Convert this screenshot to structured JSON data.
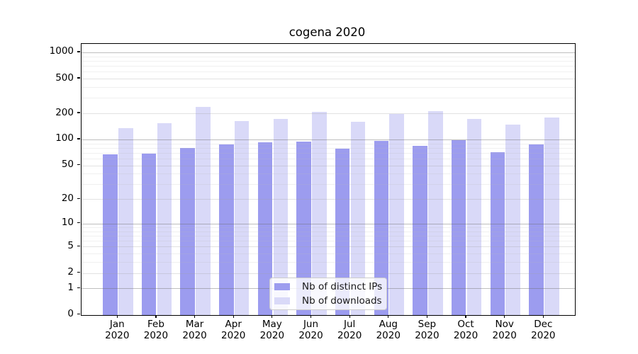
{
  "title": "cogena 2020",
  "chart_data": {
    "type": "bar",
    "categories": [
      "Jan",
      "Feb",
      "Mar",
      "Apr",
      "May",
      "Jun",
      "Jul",
      "Aug",
      "Sep",
      "Oct",
      "Nov",
      "Dec"
    ],
    "category_year": "2020",
    "series": [
      {
        "name": "Nb of distinct IPs",
        "color": "#9c9cef",
        "values": [
          67,
          69,
          80,
          87,
          92,
          95,
          78,
          97,
          85,
          98,
          71,
          87
        ]
      },
      {
        "name": "Nb of downloads",
        "color": "#d9d9f8",
        "values": [
          134,
          155,
          235,
          163,
          172,
          207,
          160,
          197,
          212,
          173,
          147,
          178
        ]
      }
    ],
    "yticks": [
      0,
      1,
      2,
      5,
      10,
      20,
      50,
      100,
      200,
      500,
      1000
    ],
    "minor_yticks": [
      3,
      4,
      6,
      7,
      8,
      9,
      30,
      40,
      60,
      70,
      80,
      90,
      300,
      400,
      600,
      700,
      800,
      900
    ],
    "scale": "log1p",
    "ylim": [
      0,
      1250
    ],
    "grid": true,
    "legend_position": "lower center",
    "style": {
      "major_grid_color": "rgba(110,110,110,0.45)",
      "labeled_minor_grid_color": "rgba(160,160,160,0.30)",
      "minor_grid_color": "rgba(185,185,185,0.22)",
      "spine_color": "#000000",
      "background": "#ffffff"
    }
  }
}
